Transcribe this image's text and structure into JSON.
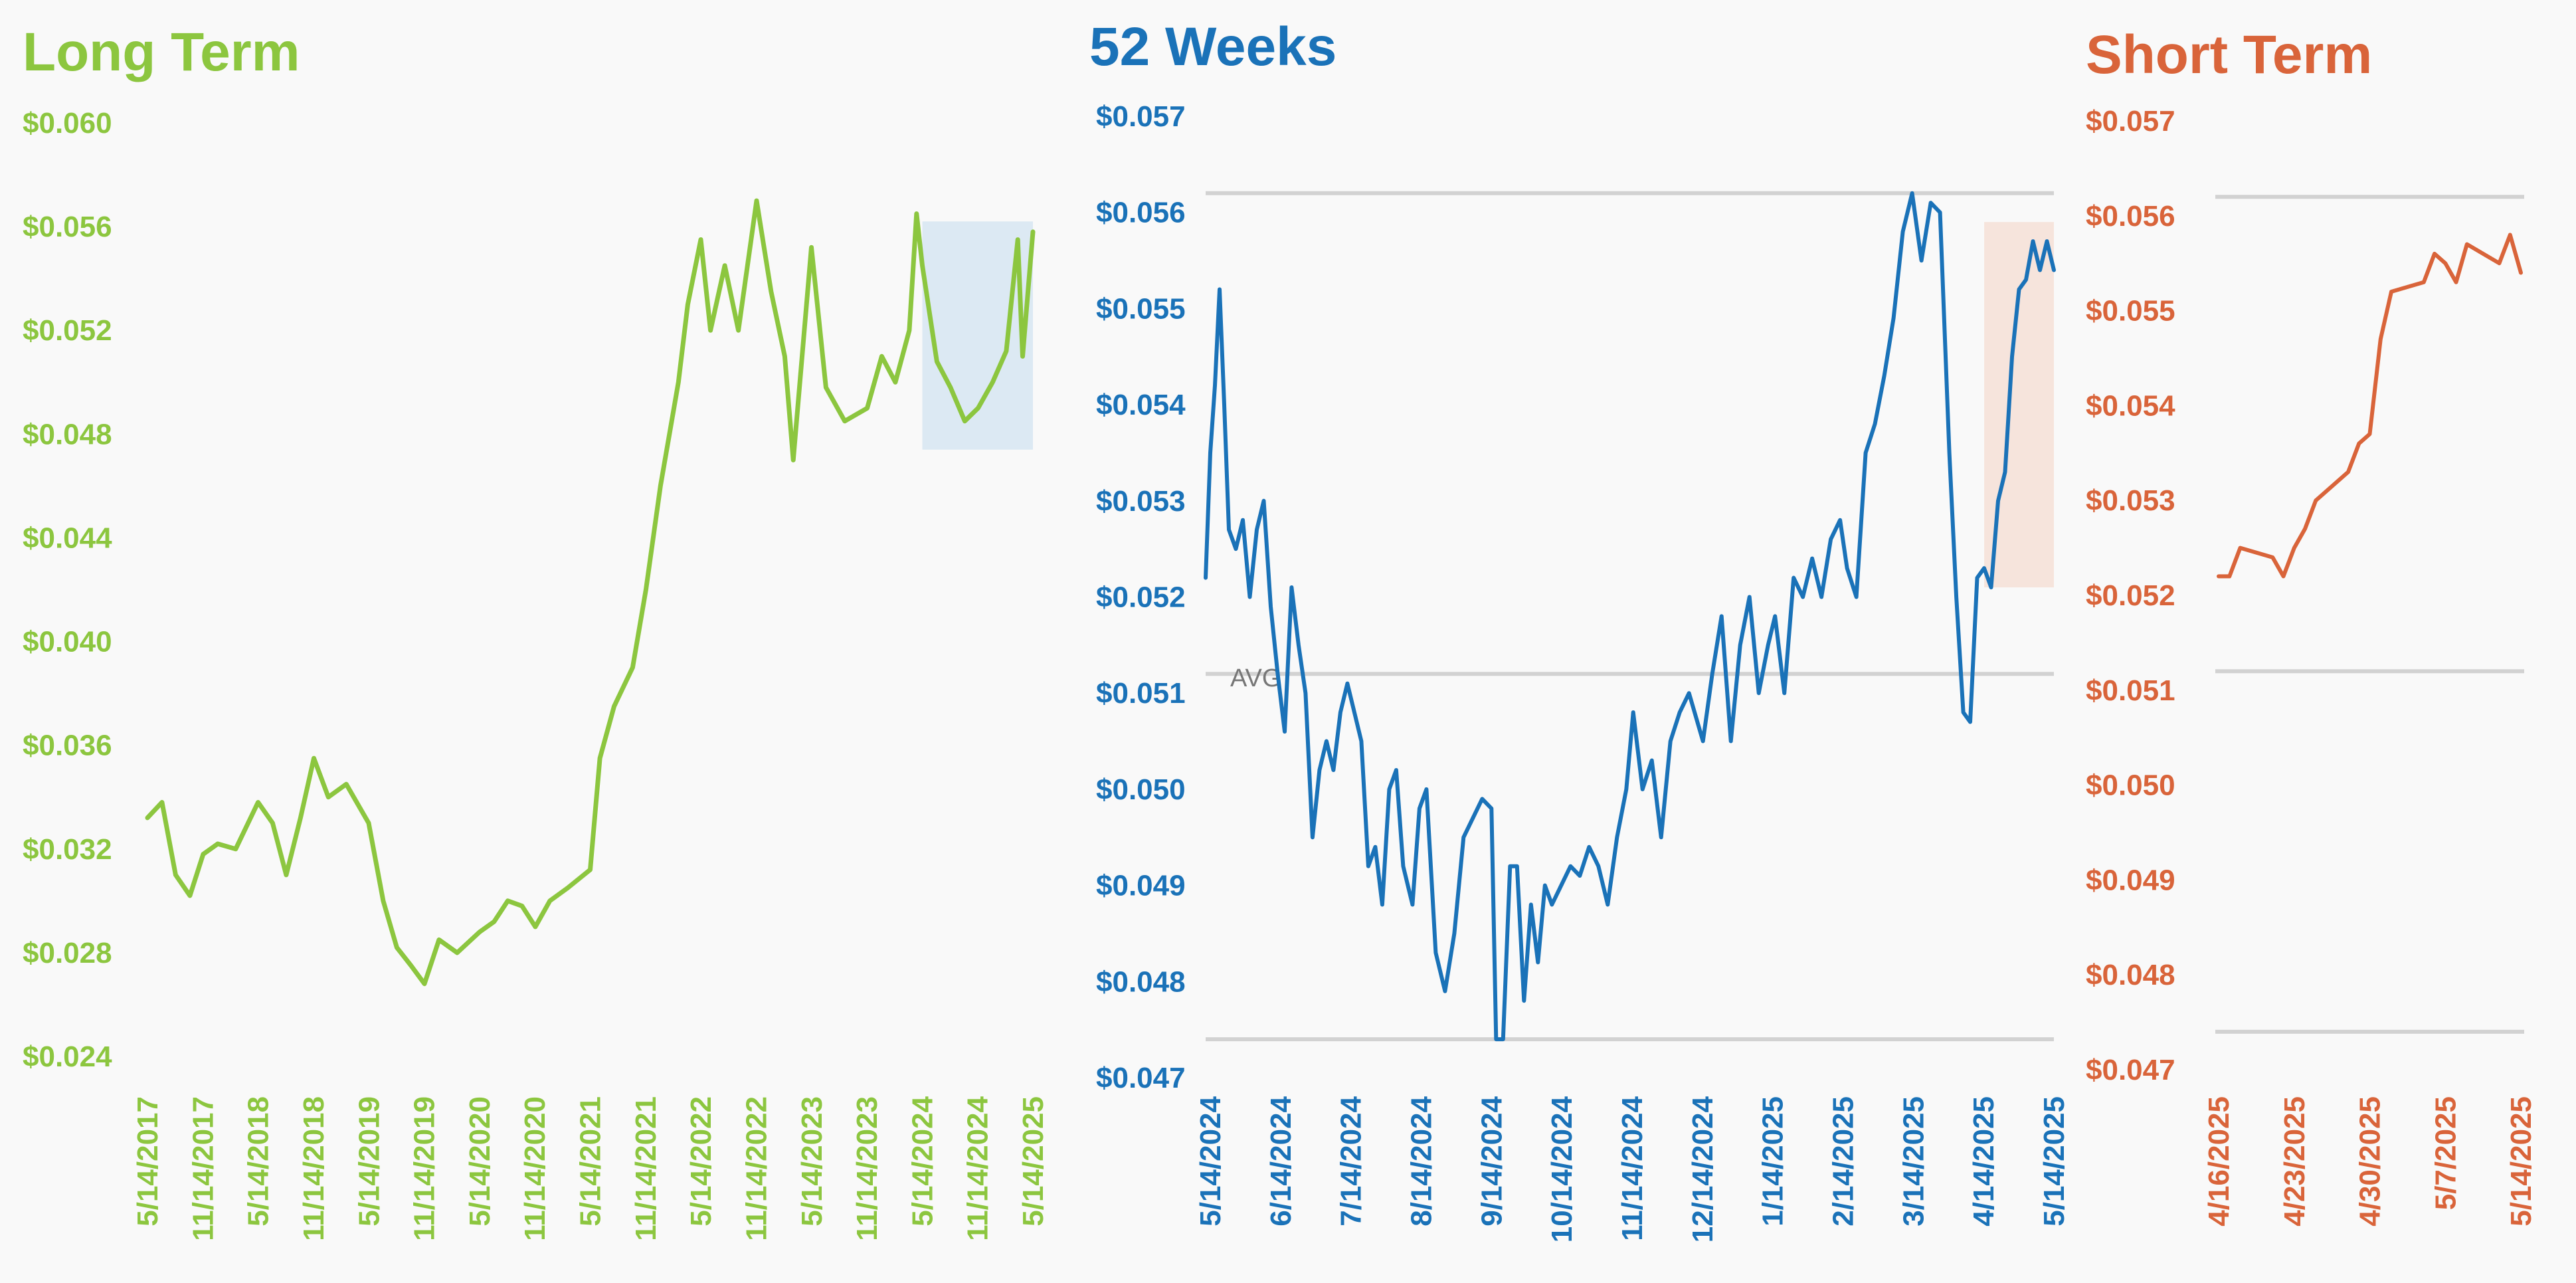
{
  "colors": {
    "long": "#8cc63f",
    "weeks": "#1a72b8",
    "short": "#d9643a",
    "grid": "#d2d2d2",
    "long_highlight": "#dce9f3",
    "weeks_highlight": "#f6e4dc",
    "avg_text": "#777777",
    "background": "#f9f9f9"
  },
  "chart_data": [
    {
      "id": "long",
      "type": "line",
      "title": "Long Term",
      "ylim": [
        0.024,
        0.06
      ],
      "y_ticks": [
        "$0.060",
        "$0.056",
        "$0.052",
        "$0.048",
        "$0.044",
        "$0.040",
        "$0.036",
        "$0.032",
        "$0.028",
        "$0.024"
      ],
      "x_ticks": [
        "5/14/2017",
        "11/14/2017",
        "5/14/2018",
        "11/14/2018",
        "5/14/2019",
        "11/14/2019",
        "5/14/2020",
        "11/14/2020",
        "5/14/2021",
        "11/14/2021",
        "5/14/2022",
        "11/14/2022",
        "5/14/2023",
        "11/14/2023",
        "5/14/2024",
        "11/14/2024",
        "5/14/2025"
      ],
      "grid": false,
      "highlight": {
        "x_from": "5/14/2024",
        "x_to": "5/14/2025",
        "y_from": 0.0474,
        "y_to": 0.0562
      },
      "series": [
        {
          "points": [
            [
              "5/14/2017",
              0.0332
            ],
            [
              "7/1/2017",
              0.0338
            ],
            [
              "8/15/2017",
              0.031
            ],
            [
              "10/1/2017",
              0.0302
            ],
            [
              "11/14/2017",
              0.0318
            ],
            [
              "1/1/2018",
              0.0322
            ],
            [
              "3/1/2018",
              0.032
            ],
            [
              "5/14/2018",
              0.0338
            ],
            [
              "7/1/2018",
              0.033
            ],
            [
              "8/15/2018",
              0.031
            ],
            [
              "10/1/2018",
              0.0332
            ],
            [
              "11/14/2018",
              0.0355
            ],
            [
              "1/1/2019",
              0.034
            ],
            [
              "3/1/2019",
              0.0345
            ],
            [
              "5/14/2019",
              0.033
            ],
            [
              "7/1/2019",
              0.03
            ],
            [
              "8/15/2019",
              0.0282
            ],
            [
              "10/1/2019",
              0.0275
            ],
            [
              "11/14/2019",
              0.0268
            ],
            [
              "1/1/2020",
              0.0285
            ],
            [
              "3/1/2020",
              0.028
            ],
            [
              "5/14/2020",
              0.0288
            ],
            [
              "7/1/2020",
              0.0292
            ],
            [
              "8/15/2020",
              0.03
            ],
            [
              "10/1/2020",
              0.0298
            ],
            [
              "11/14/2020",
              0.029
            ],
            [
              "1/1/2021",
              0.03
            ],
            [
              "3/1/2021",
              0.0305
            ],
            [
              "5/14/2021",
              0.0312
            ],
            [
              "6/15/2021",
              0.0355
            ],
            [
              "8/1/2021",
              0.0375
            ],
            [
              "10/1/2021",
              0.039
            ],
            [
              "11/14/2021",
              0.042
            ],
            [
              "1/1/2022",
              0.046
            ],
            [
              "3/1/2022",
              0.05
            ],
            [
              "4/1/2022",
              0.053
            ],
            [
              "5/14/2022",
              0.0555
            ],
            [
              "6/15/2022",
              0.052
            ],
            [
              "8/1/2022",
              0.0545
            ],
            [
              "9/15/2022",
              0.052
            ],
            [
              "11/14/2022",
              0.057
            ],
            [
              "1/1/2023",
              0.0535
            ],
            [
              "2/15/2023",
              0.051
            ],
            [
              "3/15/2023",
              0.047
            ],
            [
              "5/14/2023",
              0.0552
            ],
            [
              "7/1/2023",
              0.0498
            ],
            [
              "9/1/2023",
              0.0485
            ],
            [
              "11/14/2023",
              0.049
            ],
            [
              "1/1/2024",
              0.051
            ],
            [
              "2/15/2024",
              0.05
            ],
            [
              "4/1/2024",
              0.052
            ],
            [
              "4/25/2024",
              0.0565
            ],
            [
              "5/14/2024",
              0.0545
            ],
            [
              "7/1/2024",
              0.0508
            ],
            [
              "8/15/2024",
              0.0498
            ],
            [
              "10/1/2024",
              0.0485
            ],
            [
              "11/14/2024",
              0.049
            ],
            [
              "1/1/2025",
              0.05
            ],
            [
              "2/15/2025",
              0.0512
            ],
            [
              "3/25/2025",
              0.0555
            ],
            [
              "4/10/2025",
              0.051
            ],
            [
              "5/14/2025",
              0.0558
            ]
          ]
        }
      ]
    },
    {
      "id": "weeks",
      "type": "line",
      "title": "52 Weeks",
      "ylim": [
        0.047,
        0.057
      ],
      "y_ticks": [
        "$0.057",
        "$0.056",
        "$0.055",
        "$0.054",
        "$0.053",
        "$0.052",
        "$0.051",
        "$0.050",
        "$0.049",
        "$0.048",
        "$0.047"
      ],
      "x_ticks": [
        "5/14/2024",
        "6/14/2024",
        "7/14/2024",
        "8/14/2024",
        "9/14/2024",
        "10/14/2024",
        "11/14/2024",
        "12/14/2024",
        "1/14/2025",
        "2/14/2025",
        "3/14/2025",
        "4/14/2025",
        "5/14/2025"
      ],
      "grid_lines": [
        0.0562,
        0.0512,
        0.0474
      ],
      "avg_label": "AVG",
      "highlight": {
        "x_from": "4/14/2025",
        "x_to": "5/14/2025",
        "y_from": 0.0521,
        "y_to": 0.0559
      },
      "series": [
        {
          "points": [
            [
              "5/14/2024",
              0.0522
            ],
            [
              "5/16/2024",
              0.0535
            ],
            [
              "5/18/2024",
              0.0542
            ],
            [
              "5/20/2024",
              0.0552
            ],
            [
              "5/22/2024",
              0.054
            ],
            [
              "5/24/2024",
              0.0527
            ],
            [
              "5/27/2024",
              0.0525
            ],
            [
              "5/30/2024",
              0.0528
            ],
            [
              "6/2/2024",
              0.052
            ],
            [
              "6/5/2024",
              0.0527
            ],
            [
              "6/8/2024",
              0.053
            ],
            [
              "6/11/2024",
              0.0519
            ],
            [
              "6/14/2024",
              0.0512
            ],
            [
              "6/17/2024",
              0.0506
            ],
            [
              "6/20/2024",
              0.0521
            ],
            [
              "6/23/2024",
              0.0515
            ],
            [
              "6/26/2024",
              0.051
            ],
            [
              "6/29/2024",
              0.0495
            ],
            [
              "7/2/2024",
              0.0502
            ],
            [
              "7/5/2024",
              0.0505
            ],
            [
              "7/8/2024",
              0.0502
            ],
            [
              "7/11/2024",
              0.0508
            ],
            [
              "7/14/2024",
              0.0511
            ],
            [
              "7/17/2024",
              0.0508
            ],
            [
              "7/20/2024",
              0.0505
            ],
            [
              "7/23/2024",
              0.0492
            ],
            [
              "7/26/2024",
              0.0494
            ],
            [
              "7/29/2024",
              0.0488
            ],
            [
              "8/1/2024",
              0.05
            ],
            [
              "8/4/2024",
              0.0502
            ],
            [
              "8/7/2024",
              0.0492
            ],
            [
              "8/11/2024",
              0.0488
            ],
            [
              "8/14/2024",
              0.0498
            ],
            [
              "8/17/2024",
              0.05
            ],
            [
              "8/21/2024",
              0.0483
            ],
            [
              "8/25/2024",
              0.0479
            ],
            [
              "8/29/2024",
              0.0485
            ],
            [
              "9/2/2024",
              0.0495
            ],
            [
              "9/6/2024",
              0.0497
            ],
            [
              "9/10/2024",
              0.0499
            ],
            [
              "9/14/2024",
              0.0498
            ],
            [
              "9/16/2024",
              0.0474
            ],
            [
              "9/19/2024",
              0.0474
            ],
            [
              "9/22/2024",
              0.0492
            ],
            [
              "9/25/2024",
              0.0492
            ],
            [
              "9/28/2024",
              0.0478
            ],
            [
              "10/1/2024",
              0.0488
            ],
            [
              "10/4/2024",
              0.0482
            ],
            [
              "10/7/2024",
              0.049
            ],
            [
              "10/10/2024",
              0.0488
            ],
            [
              "10/14/2024",
              0.049
            ],
            [
              "10/18/2024",
              0.0492
            ],
            [
              "10/22/2024",
              0.0491
            ],
            [
              "10/26/2024",
              0.0494
            ],
            [
              "10/30/2024",
              0.0492
            ],
            [
              "11/3/2024",
              0.0488
            ],
            [
              "11/7/2024",
              0.0495
            ],
            [
              "11/11/2024",
              0.05
            ],
            [
              "11/14/2024",
              0.0508
            ],
            [
              "11/18/2024",
              0.05
            ],
            [
              "11/22/2024",
              0.0503
            ],
            [
              "11/26/2024",
              0.0495
            ],
            [
              "11/30/2024",
              0.0505
            ],
            [
              "12/4/2024",
              0.0508
            ],
            [
              "12/8/2024",
              0.051
            ],
            [
              "12/14/2024",
              0.0505
            ],
            [
              "12/18/2024",
              0.0512
            ],
            [
              "12/22/2024",
              0.0518
            ],
            [
              "12/26/2024",
              0.0505
            ],
            [
              "12/30/2024",
              0.0515
            ],
            [
              "1/3/2025",
              0.052
            ],
            [
              "1/7/2025",
              0.051
            ],
            [
              "1/11/2025",
              0.0515
            ],
            [
              "1/14/2025",
              0.0518
            ],
            [
              "1/18/2025",
              0.051
            ],
            [
              "1/22/2025",
              0.0522
            ],
            [
              "1/26/2025",
              0.052
            ],
            [
              "1/30/2025",
              0.0524
            ],
            [
              "2/3/2025",
              0.052
            ],
            [
              "2/7/2025",
              0.0526
            ],
            [
              "2/11/2025",
              0.0528
            ],
            [
              "2/14/2025",
              0.0523
            ],
            [
              "2/18/2025",
              0.052
            ],
            [
              "2/22/2025",
              0.0535
            ],
            [
              "2/26/2025",
              0.0538
            ],
            [
              "3/2/2025",
              0.0543
            ],
            [
              "3/6/2025",
              0.0549
            ],
            [
              "3/10/2025",
              0.0558
            ],
            [
              "3/14/2025",
              0.0562
            ],
            [
              "3/18/2025",
              0.0555
            ],
            [
              "3/22/2025",
              0.0561
            ],
            [
              "3/26/2025",
              0.056
            ],
            [
              "3/30/2025",
              0.0535
            ],
            [
              "4/2/2025",
              0.052
            ],
            [
              "4/5/2025",
              0.0508
            ],
            [
              "4/8/2025",
              0.0507
            ],
            [
              "4/11/2025",
              0.0522
            ],
            [
              "4/14/2025",
              0.0523
            ],
            [
              "4/17/2025",
              0.0521
            ],
            [
              "4/20/2025",
              0.053
            ],
            [
              "4/23/2025",
              0.0533
            ],
            [
              "4/26/2025",
              0.0545
            ],
            [
              "4/29/2025",
              0.0552
            ],
            [
              "5/2/2025",
              0.0553
            ],
            [
              "5/5/2025",
              0.0557
            ],
            [
              "5/8/2025",
              0.0554
            ],
            [
              "5/11/2025",
              0.0557
            ],
            [
              "5/14/2025",
              0.0554
            ]
          ]
        }
      ]
    },
    {
      "id": "short",
      "type": "line",
      "title": "Short Term",
      "ylim": [
        0.047,
        0.057
      ],
      "y_ticks": [
        "$0.057",
        "$0.056",
        "$0.055",
        "$0.054",
        "$0.053",
        "$0.052",
        "$0.051",
        "$0.050",
        "$0.049",
        "$0.048",
        "$0.047"
      ],
      "x_ticks": [
        "4/16/2025",
        "4/23/2025",
        "4/30/2025",
        "5/7/2025",
        "5/14/2025"
      ],
      "grid_lines": [
        0.0562,
        0.0512,
        0.0474
      ],
      "series": [
        {
          "points": [
            [
              "4/16/2025",
              0.0522
            ],
            [
              "4/17/2025",
              0.0522
            ],
            [
              "4/18/2025",
              0.0525
            ],
            [
              "4/21/2025",
              0.0524
            ],
            [
              "4/22/2025",
              0.0522
            ],
            [
              "4/23/2025",
              0.0525
            ],
            [
              "4/24/2025",
              0.0527
            ],
            [
              "4/25/2025",
              0.053
            ],
            [
              "4/28/2025",
              0.0533
            ],
            [
              "4/29/2025",
              0.0536
            ],
            [
              "4/30/2025",
              0.0537
            ],
            [
              "5/1/2025",
              0.0547
            ],
            [
              "5/2/2025",
              0.0552
            ],
            [
              "5/5/2025",
              0.0553
            ],
            [
              "5/6/2025",
              0.0556
            ],
            [
              "5/7/2025",
              0.0555
            ],
            [
              "5/8/2025",
              0.0553
            ],
            [
              "5/9/2025",
              0.0557
            ],
            [
              "5/12/2025",
              0.0555
            ],
            [
              "5/13/2025",
              0.0558
            ],
            [
              "5/14/2025",
              0.0554
            ]
          ]
        }
      ]
    }
  ]
}
